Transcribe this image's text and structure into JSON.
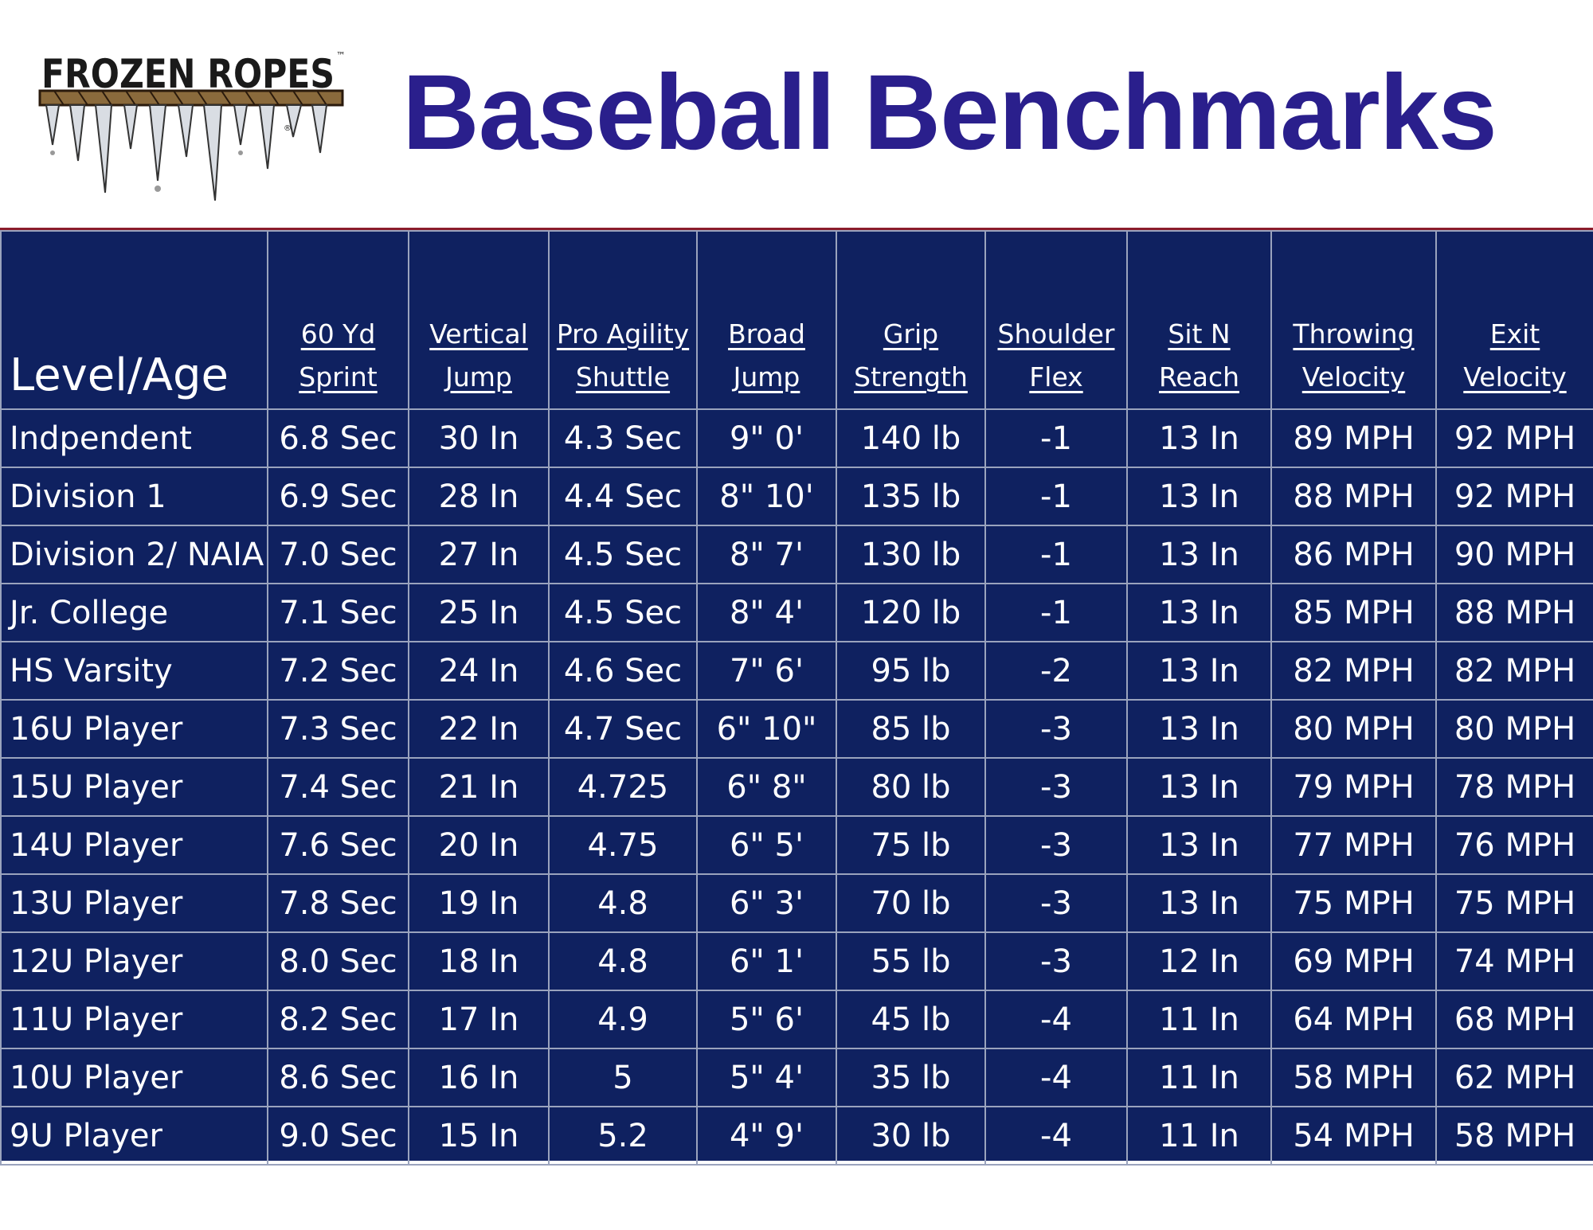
{
  "logo": {
    "text": "FROZEN ROPES",
    "trademark": "™",
    "registered": "®"
  },
  "title": "Baseball Benchmarks",
  "table": {
    "level_header": "Level/Age",
    "columns": [
      {
        "line1": "60 Yd",
        "line2": "Sprint"
      },
      {
        "line1": "Vertical",
        "line2": "Jump"
      },
      {
        "line1": "Pro Agility",
        "line2": "Shuttle"
      },
      {
        "line1": "Broad",
        "line2": "Jump"
      },
      {
        "line1": "Grip",
        "line2": "Strength"
      },
      {
        "line1": "Shoulder",
        "line2": "Flex"
      },
      {
        "line1": "Sit N",
        "line2": "Reach"
      },
      {
        "line1": "Throwing",
        "line2": "Velocity"
      },
      {
        "line1": "Exit",
        "line2": "Velocity"
      }
    ],
    "rows": [
      [
        "Indpendent",
        "6.8 Sec",
        "30 In",
        "4.3 Sec",
        "9\" 0'",
        "140 lb",
        "-1",
        "13 In",
        "89 MPH",
        "92 MPH"
      ],
      [
        "Division 1",
        "6.9 Sec",
        "28 In",
        "4.4 Sec",
        "8\" 10'",
        "135 lb",
        "-1",
        "13 In",
        "88 MPH",
        "92 MPH"
      ],
      [
        "Division 2/ NAIA",
        "7.0 Sec",
        "27 In",
        "4.5 Sec",
        "8\" 7'",
        "130 lb",
        "-1",
        "13 In",
        "86 MPH",
        "90 MPH"
      ],
      [
        "Jr. College",
        "7.1 Sec",
        "25 In",
        "4.5 Sec",
        "8\" 4'",
        "120 lb",
        "-1",
        "13 In",
        "85 MPH",
        "88 MPH"
      ],
      [
        "HS Varsity",
        "7.2 Sec",
        "24 In",
        "4.6 Sec",
        "7\" 6'",
        "95 lb",
        "-2",
        "13 In",
        "82 MPH",
        "82 MPH"
      ],
      [
        "16U Player",
        "7.3 Sec",
        "22 In",
        "4.7 Sec",
        "6\" 10\"",
        "85 lb",
        "-3",
        "13 In",
        "80 MPH",
        "80 MPH"
      ],
      [
        "15U Player",
        "7.4 Sec",
        "21 In",
        "4.725",
        "6\" 8\"",
        "80 lb",
        "-3",
        "13 In",
        "79 MPH",
        "78 MPH"
      ],
      [
        "14U Player",
        "7.6 Sec",
        "20 In",
        "4.75",
        "6\" 5'",
        "75 lb",
        "-3",
        "13 In",
        "77 MPH",
        "76 MPH"
      ],
      [
        "13U Player",
        "7.8 Sec",
        "19 In",
        "4.8",
        "6\" 3'",
        "70 lb",
        "-3",
        "13 In",
        "75 MPH",
        "75 MPH"
      ],
      [
        "12U Player",
        "8.0 Sec",
        "18 In",
        "4.8",
        "6\" 1'",
        "55 lb",
        "-3",
        "12 In",
        "69 MPH",
        "74 MPH"
      ],
      [
        "11U Player",
        "8.2 Sec",
        "17 In",
        "4.9",
        "5\" 6'",
        "45 lb",
        "-4",
        "11 In",
        "64 MPH",
        "68 MPH"
      ],
      [
        "10U Player",
        "8.6 Sec",
        "16 In",
        "5",
        "5\" 4'",
        "35 lb",
        "-4",
        "11 In",
        "58 MPH",
        "62 MPH"
      ],
      [
        "9U Player",
        "9.0 Sec",
        "15 In",
        "5.2",
        "4\" 9'",
        "30 lb",
        "-4",
        "11 In",
        "54 MPH",
        "58 MPH"
      ]
    ]
  },
  "colors": {
    "title": "#2a1f8c",
    "table_bg": "#0f2160",
    "grid_line": "#9aa3bd",
    "rule": "#8b1d2c",
    "logo_text": "#1a1a1a",
    "logo_rope": "#8a6a3c"
  }
}
